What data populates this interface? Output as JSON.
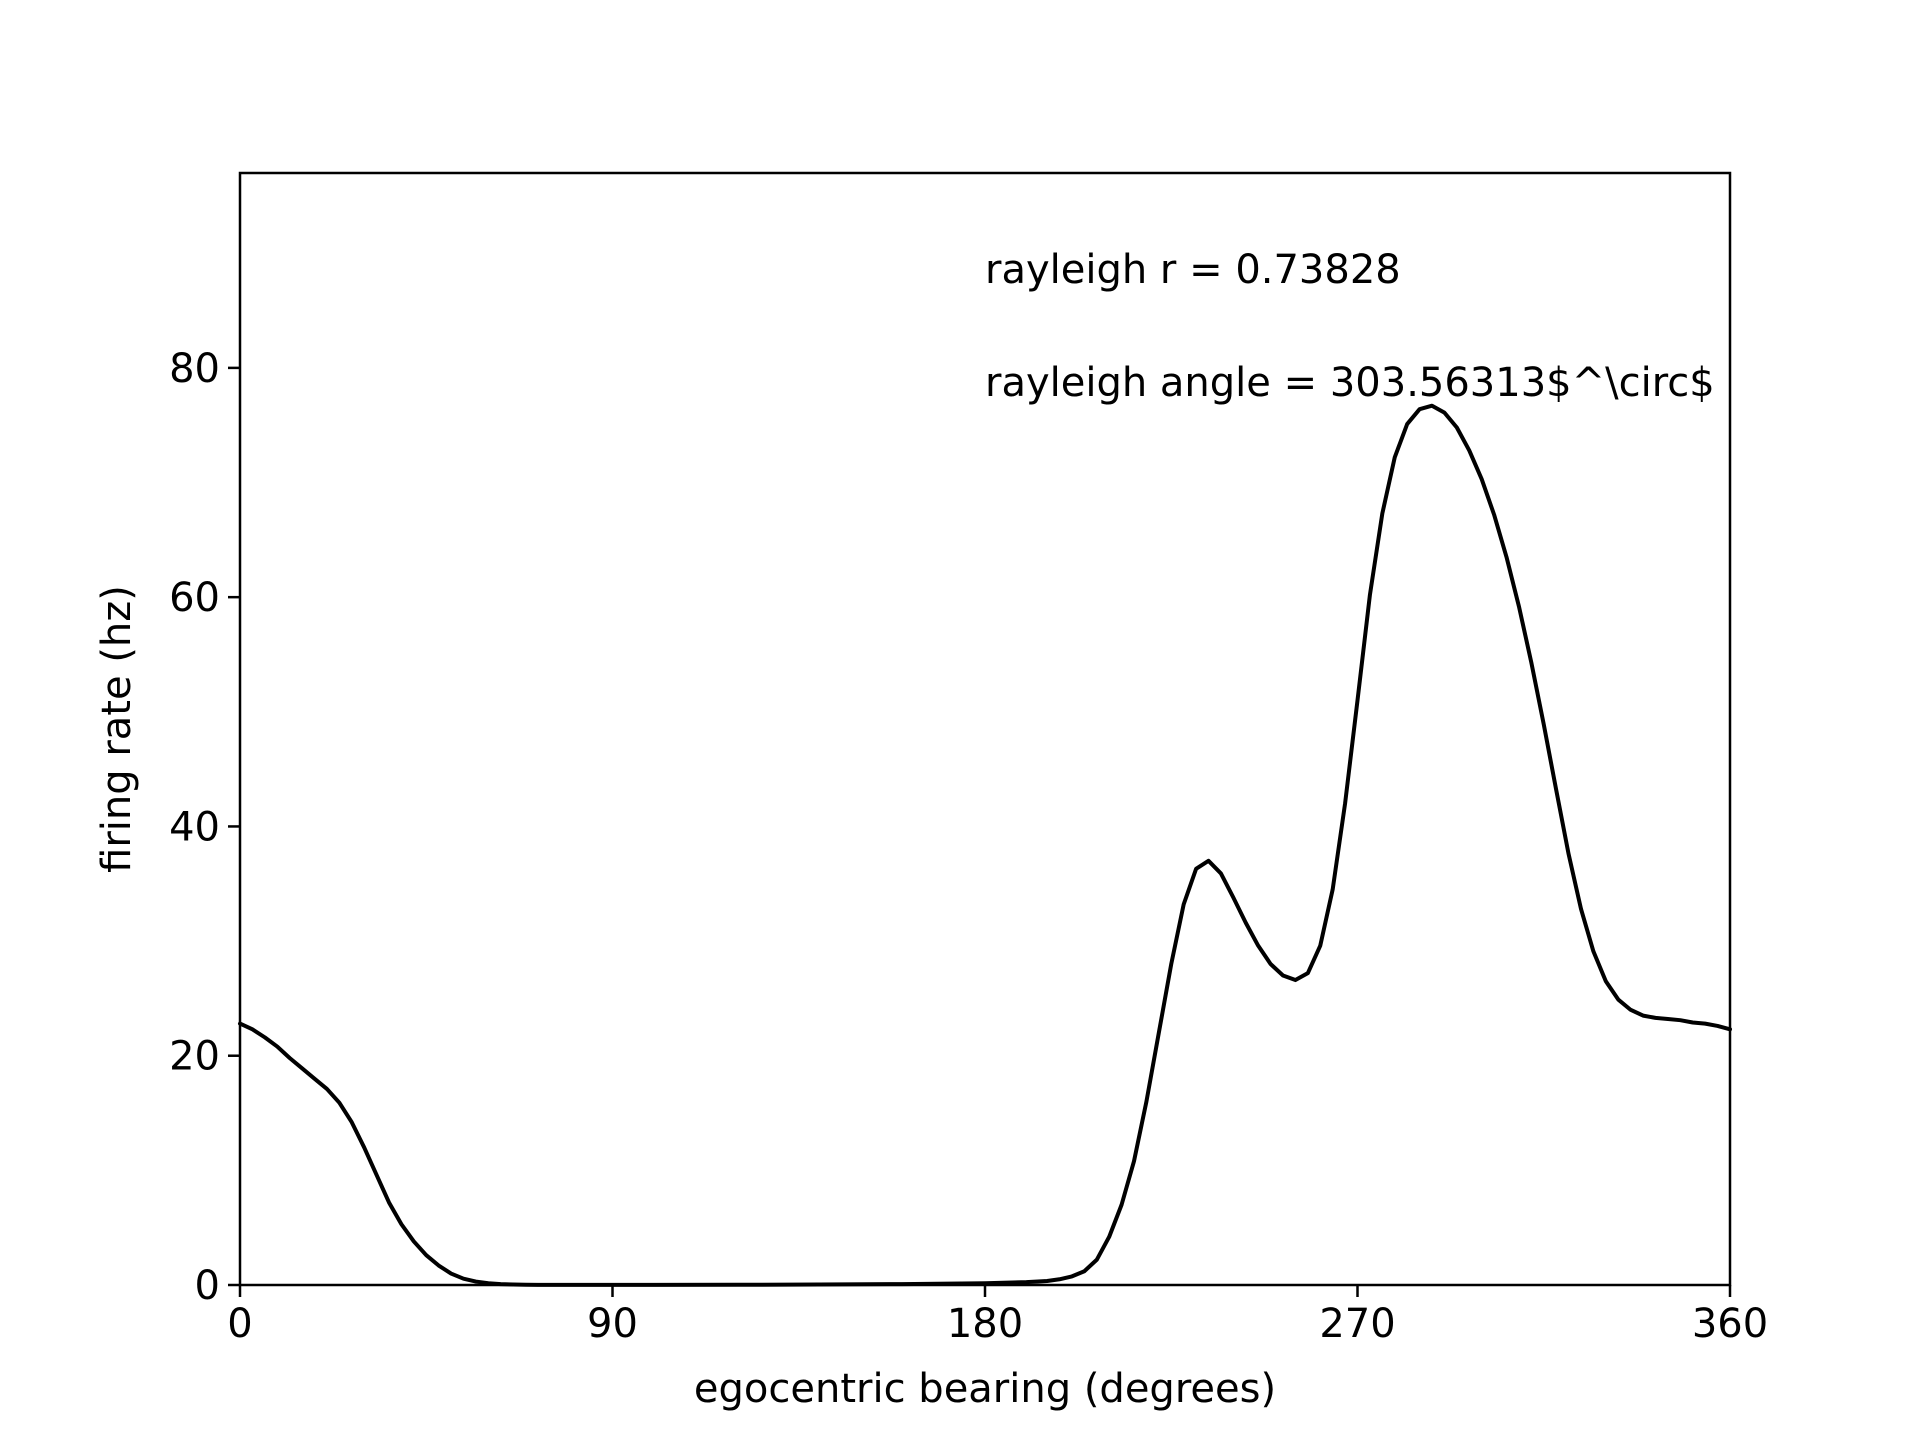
{
  "chart_data": {
    "type": "line",
    "title": "",
    "xlabel": "egocentric bearing (degrees)",
    "ylabel": "firing rate (hz)",
    "xlim": [
      0,
      360
    ],
    "ylim": [
      0,
      97
    ],
    "xticks": [
      0,
      90,
      180,
      270,
      360
    ],
    "yticks": [
      0,
      20,
      40,
      60,
      80
    ],
    "grid": false,
    "annotations": [
      "rayleigh r = 0.73828",
      "rayleigh angle = 303.56313$^\\circ$"
    ],
    "series": [
      {
        "name": "firing rate",
        "color": "#000000",
        "x": [
          0,
          3,
          6,
          9,
          12,
          15,
          18,
          21,
          24,
          27,
          30,
          33,
          36,
          39,
          42,
          45,
          48,
          51,
          54,
          57,
          60,
          63,
          66,
          69,
          72,
          75,
          78,
          81,
          84,
          87,
          90,
          100,
          120,
          140,
          160,
          180,
          190,
          195,
          198,
          201,
          204,
          207,
          210,
          213,
          216,
          219,
          222,
          225,
          228,
          231,
          234,
          237,
          240,
          243,
          246,
          249,
          252,
          255,
          258,
          261,
          264,
          267,
          270,
          273,
          276,
          279,
          282,
          285,
          288,
          291,
          294,
          297,
          300,
          303,
          306,
          309,
          312,
          315,
          318,
          321,
          324,
          327,
          330,
          333,
          336,
          339,
          342,
          345,
          348,
          351,
          354,
          357,
          360
        ],
        "y": [
          22.8,
          22.3,
          21.6,
          20.8,
          19.8,
          18.9,
          18.0,
          17.1,
          15.9,
          14.2,
          12.0,
          9.6,
          7.2,
          5.3,
          3.8,
          2.6,
          1.7,
          1.0,
          0.55,
          0.3,
          0.15,
          0.08,
          0.04,
          0.02,
          0.01,
          0.01,
          0.01,
          0.01,
          0.01,
          0.01,
          0.01,
          0.01,
          0.02,
          0.04,
          0.08,
          0.15,
          0.25,
          0.35,
          0.5,
          0.75,
          1.2,
          2.2,
          4.2,
          7.0,
          10.8,
          16.0,
          22.0,
          28.0,
          33.2,
          36.3,
          37.0,
          35.9,
          33.8,
          31.6,
          29.6,
          28.0,
          27.0,
          26.6,
          27.2,
          29.6,
          34.5,
          42.0,
          51.0,
          60.2,
          67.3,
          72.2,
          75.1,
          76.4,
          76.7,
          76.1,
          74.8,
          72.8,
          70.3,
          67.2,
          63.5,
          59.2,
          54.3,
          48.9,
          43.2,
          37.6,
          32.8,
          29.1,
          26.5,
          24.9,
          24.0,
          23.5,
          23.3,
          23.2,
          23.1,
          22.9,
          22.8,
          22.6,
          22.3
        ]
      }
    ]
  }
}
